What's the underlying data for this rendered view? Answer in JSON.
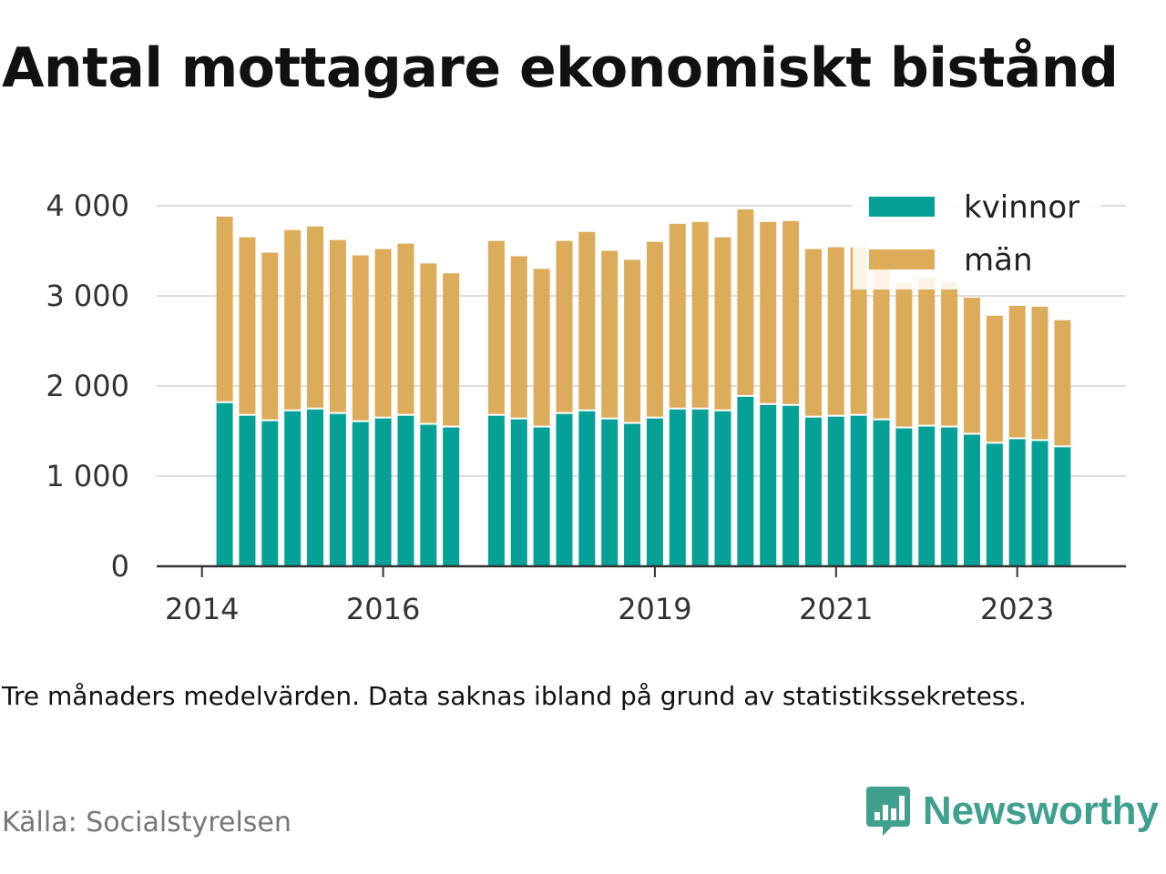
{
  "page": {
    "title": "Antal mottagare ekonomiskt bistånd",
    "note": "Tre månaders medelvärden. Data saknas ibland på grund av statistikssekretess.",
    "source": "Källa: Socialstyrelsen",
    "brand": "Newsworthy",
    "brand_icon": "newsworthy-logo-icon"
  },
  "colors": {
    "kvinnor": "#05a197",
    "man": "#dcac5a",
    "grid": "#dddddd",
    "axis": "#333333"
  },
  "chart_data": {
    "type": "bar",
    "stacked": true,
    "title": "Antal mottagare ekonomiskt bistånd",
    "xlabel": "",
    "ylabel": "",
    "ylim": [
      0,
      4000
    ],
    "yticks": [
      0,
      1000,
      2000,
      3000,
      4000
    ],
    "ytick_labels": [
      "0",
      "1 000",
      "2 000",
      "3 000",
      "4 000"
    ],
    "xticks": [
      2014,
      2016,
      2019,
      2021,
      2023
    ],
    "xtick_labels": [
      "2014",
      "2016",
      "2019",
      "2021",
      "2023"
    ],
    "xlim": [
      2013.5,
      2024.2
    ],
    "legend_position": "top-right",
    "x": [
      2014.25,
      2014.5,
      2014.75,
      2015.0,
      2015.25,
      2015.5,
      2015.75,
      2016.0,
      2016.25,
      2016.5,
      2016.75,
      2017.25,
      2017.5,
      2017.75,
      2018.0,
      2018.25,
      2018.5,
      2018.75,
      2019.0,
      2019.25,
      2019.5,
      2019.75,
      2020.0,
      2020.25,
      2020.5,
      2020.75,
      2021.0,
      2021.25,
      2021.5,
      2021.75,
      2022.0,
      2022.25,
      2022.5,
      2022.75,
      2023.0,
      2023.25,
      2023.5
    ],
    "series": [
      {
        "name": "kvinnor",
        "values": [
          1810,
          1670,
          1610,
          1720,
          1740,
          1690,
          1600,
          1640,
          1670,
          1570,
          1540,
          1670,
          1630,
          1540,
          1690,
          1720,
          1630,
          1580,
          1640,
          1740,
          1740,
          1720,
          1880,
          1790,
          1780,
          1650,
          1660,
          1670,
          1620,
          1530,
          1550,
          1540,
          1460,
          1360,
          1410,
          1390,
          1320
        ]
      },
      {
        "name": "män",
        "values": [
          2070,
          1980,
          1870,
          2010,
          2030,
          1930,
          1850,
          1880,
          1910,
          1790,
          1710,
          1940,
          1810,
          1760,
          1920,
          1990,
          1870,
          1820,
          1960,
          2060,
          2080,
          1930,
          2080,
          2030,
          2050,
          1870,
          1880,
          1870,
          1690,
          1610,
          1650,
          1610,
          1520,
          1420,
          1480,
          1490,
          1410
        ]
      }
    ]
  }
}
